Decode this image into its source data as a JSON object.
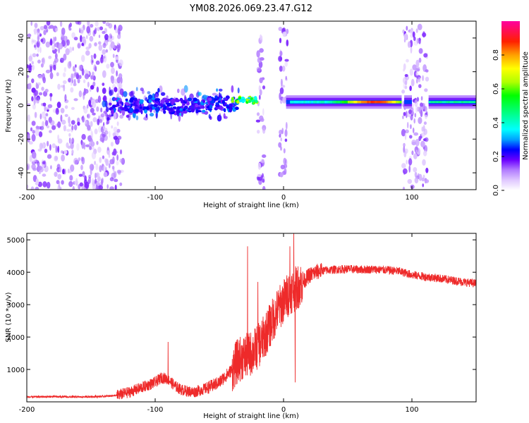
{
  "title": "YM08.2026.069.23.47.G12",
  "chart_data": [
    {
      "type": "heatmap",
      "xlabel": "Height of straight line (km)",
      "ylabel": "Frequency (Hz)",
      "xlim": [
        -200,
        150
      ],
      "ylim": [
        -50,
        50
      ],
      "xticks": [
        -200,
        -100,
        0,
        100
      ],
      "yticks": [
        -40,
        -20,
        0,
        20,
        40
      ],
      "colorbar": {
        "label": "Normalized spectral amplitude",
        "range": [
          0,
          1
        ],
        "ticks": [
          0.0,
          0.2,
          0.4,
          0.6,
          0.8
        ],
        "colormap": [
          "#ffffff",
          "#e0c8ff",
          "#b27cff",
          "#7a1fff",
          "#3b00ff",
          "#0000ff",
          "#00a0ff",
          "#00ffff",
          "#00ff80",
          "#00ff00",
          "#a0ff00",
          "#ffff00",
          "#ffa000",
          "#ff3000",
          "#ff0000",
          "#ff00a0"
        ]
      },
      "regions": [
        {
          "name": "scatter-left",
          "x": [
            -200,
            -125
          ],
          "freq": [
            -50,
            50
          ],
          "level": 0.15
        },
        {
          "name": "band-mid",
          "x": [
            -140,
            -35
          ],
          "freq": [
            -8,
            10
          ],
          "level": 0.3
        },
        {
          "name": "burst-1",
          "x": [
            -20,
            -15
          ],
          "freq": [
            -50,
            48
          ],
          "level": 0.15
        },
        {
          "name": "burst-2",
          "x": [
            -3,
            3
          ],
          "freq": [
            -45,
            48
          ],
          "level": 0.15
        },
        {
          "name": "band-right",
          "x": [
            2,
            150
          ],
          "freq": [
            0,
            4
          ],
          "level": 0.7
        },
        {
          "name": "burst-3",
          "x": [
            93,
            112
          ],
          "freq": [
            -50,
            48
          ],
          "level": 0.15
        }
      ]
    },
    {
      "type": "line",
      "xlabel": "Height of straight line (km)",
      "ylabel": "SNR (10 * v/v)",
      "xlim": [
        -200,
        150
      ],
      "ylim": [
        0,
        5200
      ],
      "xticks": [
        -200,
        -100,
        0,
        100
      ],
      "yticks": [
        1000,
        2000,
        3000,
        4000,
        5000
      ],
      "color": "#ee2a2a",
      "series": [
        {
          "name": "SNR",
          "x": [
            -200,
            -180,
            -160,
            -140,
            -130,
            -120,
            -110,
            -100,
            -95,
            -90,
            -85,
            -80,
            -75,
            -70,
            -60,
            -50,
            -45,
            -40,
            -35,
            -30,
            -25,
            -20,
            -15,
            -10,
            -5,
            0,
            5,
            10,
            15,
            20,
            25,
            30,
            40,
            50,
            60,
            70,
            80,
            90,
            100,
            110,
            120,
            130,
            140,
            150
          ],
          "values": [
            150,
            160,
            150,
            170,
            200,
            300,
            450,
            600,
            750,
            700,
            500,
            380,
            330,
            300,
            420,
            600,
            800,
            1000,
            1300,
            1400,
            1500,
            1700,
            2000,
            2400,
            2800,
            3100,
            3400,
            3500,
            3700,
            3900,
            4000,
            4050,
            4080,
            4100,
            4080,
            4090,
            4070,
            4030,
            3920,
            3860,
            3820,
            3760,
            3700,
            3650
          ]
        }
      ],
      "spikes": [
        {
          "x": -90,
          "value": 1850
        },
        {
          "x": -28,
          "value": 4800
        },
        {
          "x": -20,
          "value": 3700
        },
        {
          "x": 5,
          "value": 4800
        },
        {
          "x": 8,
          "value": 5200
        },
        {
          "x": 9,
          "value": 600
        }
      ]
    }
  ]
}
